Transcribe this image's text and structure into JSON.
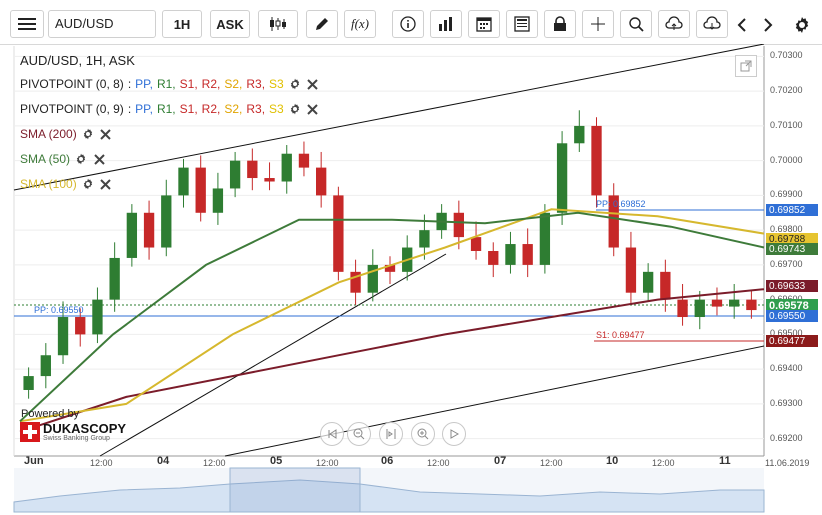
{
  "toolbar": {
    "menu_icon": "hamburger-icon",
    "symbol": "AUD/USD",
    "timeframe": "1H",
    "side": "ASK",
    "icons": [
      "candlestick-icon",
      "draw-pen-icon",
      "function-icon",
      "info-icon",
      "bar-chart-icon",
      "calendar-icon",
      "news-icon",
      "lock-icon",
      "crosshair-icon",
      "zoom-icon",
      "upload-cloud-icon",
      "download-cloud-icon",
      "chevron-left-icon",
      "chevron-right-icon",
      "gear-icon"
    ],
    "function_label": "f(x)"
  },
  "legend": {
    "title": "AUD/USD, 1H, ASK",
    "pivot1": {
      "name": "PIVOTPOINT (0, 8)",
      "sep": ":",
      "items": [
        "PP,",
        "R1,",
        "S1,",
        "R2,",
        "S2,",
        "R3,",
        "S3"
      ]
    },
    "pivot2": {
      "name": "PIVOTPOINT (0, 9)",
      "sep": ":",
      "items": [
        "PP,",
        "R1,",
        "S1,",
        "R2,",
        "S2,",
        "R3,",
        "S3"
      ]
    },
    "sma200": "SMA (200)",
    "sma50": "SMA (50)",
    "sma100": "SMA (100)"
  },
  "colors": {
    "pp": "#2f6fd6",
    "r1": "#2e7d32",
    "s1": "#c62828",
    "r2": "#c62828",
    "s2": "#e0a400",
    "r3": "#c62828",
    "s3": "#e0c000",
    "sma200": "#7b1c2a",
    "sma50": "#3e7b3a",
    "sma100": "#d6b82e",
    "bull": "#2e7d32",
    "bear": "#c62828"
  },
  "price_axis": {
    "ticks": [
      "0.70300",
      "0.70200",
      "0.70100",
      "0.70000",
      "0.69900",
      "0.69800",
      "0.69700",
      "0.69600",
      "0.69500",
      "0.69400",
      "0.69300",
      "0.69200"
    ]
  },
  "price_tags": {
    "pp_level": "0.69852",
    "sma100": "0.69788",
    "sma50": "0.69743",
    "sma200": "0.69633",
    "current": "0.69578",
    "pp2": "0.69550",
    "s1": "0.69477"
  },
  "annotations": {
    "pp_upper": "PP: 0.69852",
    "pp_lower": "PP: 0.69550",
    "s1": "S1: 0.69477"
  },
  "time_axis": {
    "labels": [
      "Jun",
      "12:00",
      "04",
      "12:00",
      "05",
      "12:00",
      "06",
      "12:00",
      "07",
      "12:00",
      "10",
      "12:00",
      "11",
      "11.06.2019"
    ]
  },
  "branding": {
    "powered_by": "Powered by",
    "name": "DUKASCOPY",
    "sub": "Swiss Banking Group"
  },
  "nav_controls": [
    "rewind-icon",
    "zoom-out-icon",
    "fit-icon",
    "zoom-in-icon",
    "play-icon"
  ],
  "chart_data": {
    "type": "candlestick",
    "title": "AUD/USD, 1H, ASK",
    "ylim": [
      0.6915,
      0.7033
    ],
    "x_dates": [
      "Jun",
      "04",
      "05",
      "06",
      "07",
      "10",
      "11"
    ],
    "series_close": [
      0.6938,
      0.6944,
      0.6955,
      0.695,
      0.696,
      0.6972,
      0.6985,
      0.6975,
      0.699,
      0.6998,
      0.6985,
      0.6992,
      0.7,
      0.6995,
      0.6994,
      0.7002,
      0.6998,
      0.699,
      0.6968,
      0.6962,
      0.697,
      0.6968,
      0.6975,
      0.698,
      0.6985,
      0.6978,
      0.6974,
      0.697,
      0.6976,
      0.697,
      0.6985,
      0.7005,
      0.701,
      0.699,
      0.6975,
      0.6962,
      0.6968,
      0.696,
      0.6955,
      0.696,
      0.6958,
      0.696,
      0.6957
    ],
    "sma200_levels": [
      0.6922,
      0.6932,
      0.6938,
      0.6944,
      0.695,
      0.6955,
      0.696,
      0.6963
    ],
    "sma50_levels": [
      0.6925,
      0.695,
      0.697,
      0.6983,
      0.6983,
      0.6982,
      0.6985,
      0.6981,
      0.6975
    ],
    "sma100_levels": [
      0.6925,
      0.693,
      0.695,
      0.6965,
      0.6975,
      0.6986,
      0.6984,
      0.6979
    ]
  }
}
